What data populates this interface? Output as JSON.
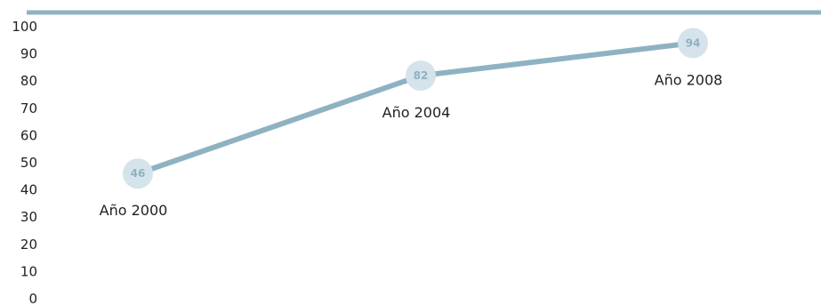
{
  "chart_data": {
    "type": "line",
    "categories": [
      "Año 2000",
      "Año 2004",
      "Año 2008"
    ],
    "values": [
      46,
      82,
      94
    ],
    "value_labels": [
      "46",
      "82",
      "94"
    ],
    "yticks": [
      "0",
      "10",
      "20",
      "30",
      "40",
      "50",
      "60",
      "70",
      "80",
      "90",
      "100"
    ],
    "ylim": [
      0,
      100
    ],
    "grid": false,
    "colors": {
      "line": "#8fb2c3",
      "marker": "#d5e3ea",
      "marker_text": "#8fb2c3",
      "top_rule": "#8fb2c3"
    }
  }
}
